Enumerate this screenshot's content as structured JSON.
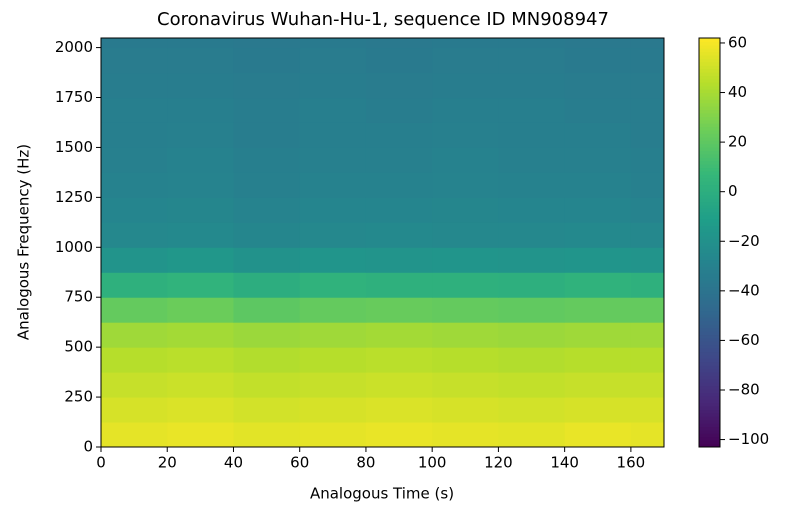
{
  "chart_data": {
    "type": "spectrogram",
    "title": "Coronavirus Wuhan-Hu-1, sequence ID MN908947",
    "x_label": "Analogous Time (s)",
    "y_label": "Analogous Frequency (Hz)",
    "colormap": "viridis",
    "time_bins": [
      0,
      20,
      40,
      60,
      80,
      100,
      120,
      140,
      160,
      170
    ],
    "freq_bins": [
      0,
      125,
      250,
      375,
      500,
      625,
      750,
      875,
      1000,
      1125,
      1250,
      1375,
      1500,
      1625,
      1750,
      1875,
      2000,
      2048
    ],
    "values": [
      [
        56,
        57,
        55,
        56,
        57,
        56,
        55,
        57,
        56
      ],
      [
        52,
        53,
        51,
        52,
        53,
        52,
        51,
        52,
        52
      ],
      [
        48,
        49,
        47,
        48,
        49,
        48,
        47,
        48,
        48
      ],
      [
        44,
        45,
        43,
        44,
        45,
        44,
        43,
        44,
        44
      ],
      [
        38,
        39,
        37,
        38,
        39,
        38,
        37,
        38,
        38
      ],
      [
        22,
        24,
        20,
        22,
        23,
        22,
        21,
        22,
        22
      ],
      [
        2,
        4,
        0,
        3,
        2,
        2,
        1,
        3,
        2
      ],
      [
        -18,
        -16,
        -19,
        -17,
        -18,
        -17,
        -18,
        -17,
        -18
      ],
      [
        -26,
        -25,
        -27,
        -26,
        -25,
        -26,
        -26,
        -25,
        -26
      ],
      [
        -28,
        -27,
        -29,
        -28,
        -28,
        -27,
        -28,
        -28,
        -29
      ],
      [
        -30,
        -29,
        -31,
        -30,
        -30,
        -29,
        -30,
        -30,
        -31
      ],
      [
        -31,
        -30,
        -32,
        -31,
        -31,
        -30,
        -31,
        -31,
        -32
      ],
      [
        -32,
        -31,
        -33,
        -32,
        -32,
        -31,
        -32,
        -32,
        -33
      ],
      [
        -32,
        -32,
        -33,
        -32,
        -33,
        -32,
        -32,
        -33,
        -33
      ],
      [
        -33,
        -33,
        -34,
        -33,
        -34,
        -33,
        -33,
        -34,
        -34
      ],
      [
        -34,
        -34,
        -35,
        -34,
        -35,
        -34,
        -34,
        -35,
        -35
      ],
      [
        -35,
        -35,
        -36,
        -35,
        -36,
        -35,
        -35,
        -36,
        -36
      ]
    ],
    "xlim": [
      0,
      170
    ],
    "xticks": [
      0,
      20,
      40,
      60,
      80,
      100,
      120,
      140,
      160
    ],
    "ylim": [
      0,
      2048
    ],
    "yticks": [
      0,
      250,
      500,
      750,
      1000,
      1250,
      1500,
      1750,
      2000
    ],
    "clim": [
      -103,
      62
    ],
    "cticks": [
      {
        "value": -100,
        "label": "−100"
      },
      {
        "value": -80,
        "label": "−80"
      },
      {
        "value": -60,
        "label": "−60"
      },
      {
        "value": -40,
        "label": "−40"
      },
      {
        "value": -20,
        "label": "−20"
      },
      0,
      20,
      40,
      60
    ]
  }
}
